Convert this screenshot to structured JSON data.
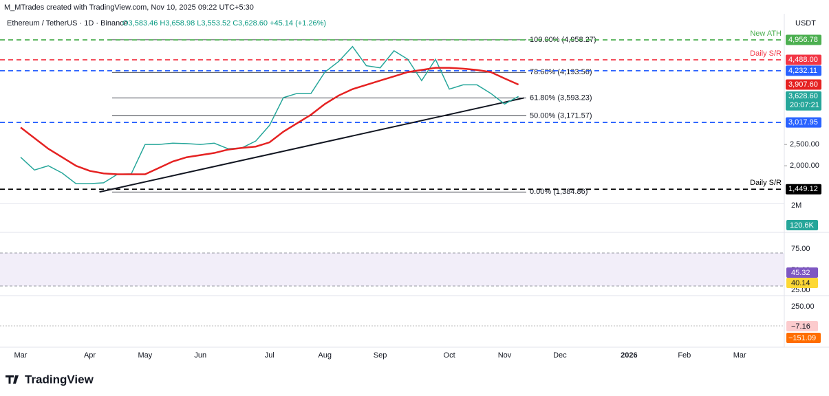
{
  "header": {
    "title": "M_MTrades created with TradingView.com, Nov 10, 2025 09:22 UTC+5:30",
    "symbol": "Ethereum / TetherUS · 1D · Binance",
    "ohlc": "O3,583.46 H3,658.98 L3,553.52 C3,628.60 +45.14 (+1.26%)",
    "currency": "USDT"
  },
  "chart_data": {
    "type": "line",
    "categories": [
      "Mar",
      null,
      null,
      null,
      null,
      "Apr",
      null,
      null,
      null,
      "May",
      null,
      null,
      null,
      "Jun",
      null,
      null,
      null,
      null,
      "Jul",
      null,
      null,
      null,
      "Aug",
      null,
      null,
      null,
      "Sep",
      null,
      null,
      null,
      null,
      "Oct",
      null,
      null,
      null,
      "Nov",
      null,
      null,
      null,
      "Dec",
      null,
      null,
      null,
      null,
      "2026",
      null,
      null,
      null,
      "Feb",
      null,
      null,
      null,
      "Mar"
    ],
    "series": [
      {
        "color": "#26a69a",
        "values": [
          2200,
          1900,
          2000,
          1830,
          1580,
          1580,
          1600,
          1800,
          1810,
          2500,
          2500,
          2530,
          2520,
          2500,
          2530,
          2400,
          2420,
          2580,
          2950,
          3600,
          3700,
          3700,
          4200,
          4450,
          4800,
          4350,
          4300,
          4700,
          4500,
          4000,
          4500,
          3800,
          3900,
          3900,
          3700,
          3450,
          3628.6,
          null,
          null,
          null,
          null,
          null,
          null,
          null,
          null,
          null,
          null,
          null,
          null,
          null,
          null,
          null,
          null
        ]
      },
      {
        "color": "#e52222",
        "values": [
          2900,
          2650,
          2400,
          2200,
          2000,
          1880,
          1820,
          1800,
          1800,
          1800,
          1950,
          2100,
          2200,
          2250,
          2300,
          2380,
          2420,
          2450,
          2550,
          2800,
          3000,
          3200,
          3450,
          3650,
          3800,
          3900,
          4000,
          4100,
          4200,
          4250,
          4300,
          4300,
          4280,
          4250,
          4200,
          4050,
          3907.6,
          null,
          null,
          null,
          null,
          null,
          null,
          null,
          null,
          null,
          null,
          null,
          null,
          null,
          null,
          null,
          null
        ]
      }
    ],
    "ylim": [
      1130,
      5570
    ],
    "yticks": [
      {
        "value": 2000,
        "label": "2,000.00"
      },
      {
        "value": 2500,
        "label": "2,500.00"
      }
    ],
    "levels": [
      {
        "value": 4956.78,
        "label": "4,956.78",
        "note": "New ATH",
        "color": "#4caf50"
      },
      {
        "value": 4488,
        "label": "4,488.00",
        "note": "Daily S/R",
        "color": "#f23645"
      },
      {
        "value": 4232.11,
        "label": "4,232.11",
        "color": "#2962ff"
      },
      {
        "value": 3017.95,
        "label": "3,017.95",
        "color": "#2962ff"
      },
      {
        "value": 1449.12,
        "label": "1,449.12",
        "note": "Daily S/R",
        "color": "#000000"
      }
    ],
    "fib": [
      {
        "value": 4958.27,
        "label": "100.00% (4,958.27)"
      },
      {
        "value": 4193.56,
        "label": "78.60% (4,193.56)"
      },
      {
        "value": 3593.23,
        "label": "61.80% (3,593.23)"
      },
      {
        "value": 3171.57,
        "label": "50.00% (3,171.57)"
      },
      {
        "value": 1384.86,
        "label": "0.00% (1,384.86)"
      }
    ],
    "last": {
      "value": 3628.6,
      "label": "3,628.60",
      "countdown": "20:07:21",
      "color": "#26a69a"
    },
    "ma_last": {
      "value": 3907.6,
      "label": "3,907.60",
      "color": "#e52222"
    }
  },
  "volume": {
    "scale": "2M",
    "last": "120.6K"
  },
  "rsi": {
    "ticks": [
      "75.00",
      "50.00",
      "25.00"
    ],
    "rsi": "45.32",
    "ma": "40.14"
  },
  "macd": {
    "ticks": [
      "250.00"
    ],
    "hist": "−7.16",
    "signal": "−151.09"
  },
  "logo": "TradingView"
}
